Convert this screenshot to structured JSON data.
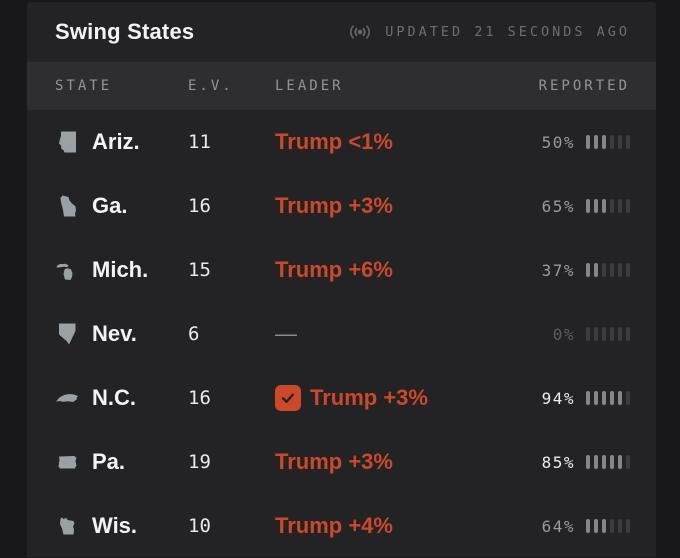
{
  "header": {
    "title": "Swing States",
    "updated": "UPDATED 21 SECONDS AGO"
  },
  "table": {
    "columns": [
      "STATE",
      "E.V.",
      "LEADER",
      "REPORTED"
    ],
    "rows": [
      {
        "state": "Ariz.",
        "icon": "arizona",
        "ev": "11",
        "leader": "Trump <1%",
        "leader_party": "rep",
        "called": false,
        "reported": "50%",
        "bars_filled": 3,
        "bars_total": 6,
        "reported_style": "normal"
      },
      {
        "state": "Ga.",
        "icon": "georgia",
        "ev": "16",
        "leader": "Trump +3%",
        "leader_party": "rep",
        "called": false,
        "reported": "65%",
        "bars_filled": 3,
        "bars_total": 6,
        "reported_style": "normal"
      },
      {
        "state": "Mich.",
        "icon": "michigan",
        "ev": "15",
        "leader": "Trump +6%",
        "leader_party": "rep",
        "called": false,
        "reported": "37%",
        "bars_filled": 2,
        "bars_total": 6,
        "reported_style": "normal"
      },
      {
        "state": "Nev.",
        "icon": "nevada",
        "ev": "6",
        "leader": "—",
        "leader_party": "none",
        "called": false,
        "reported": "0%",
        "bars_filled": 0,
        "bars_total": 6,
        "reported_style": "dim"
      },
      {
        "state": "N.C.",
        "icon": "northcarolina",
        "ev": "16",
        "leader": "Trump +3%",
        "leader_party": "rep",
        "called": true,
        "reported": "94%",
        "bars_filled": 5,
        "bars_total": 6,
        "reported_style": "bright"
      },
      {
        "state": "Pa.",
        "icon": "pennsylvania",
        "ev": "19",
        "leader": "Trump +3%",
        "leader_party": "rep",
        "called": false,
        "reported": "85%",
        "bars_filled": 5,
        "bars_total": 6,
        "reported_style": "bright"
      },
      {
        "state": "Wis.",
        "icon": "wisconsin",
        "ev": "10",
        "leader": "Trump +4%",
        "leader_party": "rep",
        "called": false,
        "reported": "64%",
        "bars_filled": 3,
        "bars_total": 6,
        "reported_style": "normal"
      }
    ]
  },
  "colors": {
    "accent_rep": "#cb4829",
    "state_icon": "#9aa0a4",
    "card_bg": "#232325",
    "band_bg": "#2e2e30",
    "outer_bg": "#18181a"
  }
}
